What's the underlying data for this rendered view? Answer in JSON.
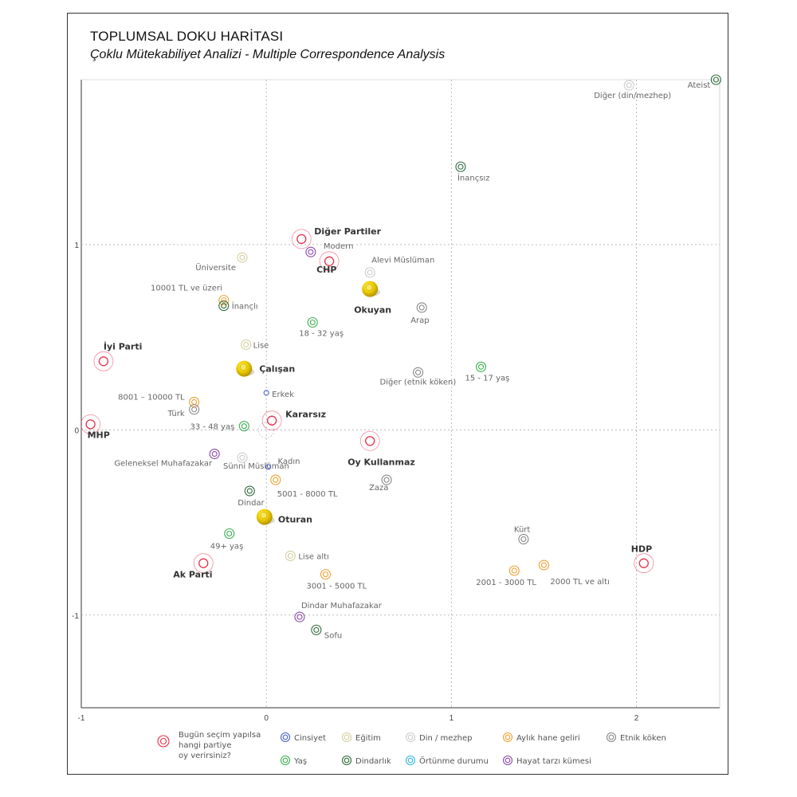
{
  "title": "TOPLUMSAL DOKU HARİTASI",
  "subtitle": "Çoklu Mütekabiliyet Analizi - Multiple Correspondence Analysis",
  "chart_data": {
    "type": "scatter",
    "xlim": [
      -1,
      2.45
    ],
    "ylim": [
      -1.5,
      1.89
    ],
    "x_ticks": [
      "-1",
      "0",
      "1",
      "2"
    ],
    "y_ticks": [
      "1",
      "0",
      "-1"
    ],
    "grid": "dashed at integer values",
    "colors": {
      "parti": "#e8304a",
      "cinsiyet": "#4a63c8",
      "egitim": "#d4cfa0",
      "din": "#cccccc",
      "gelir": "#f0a030",
      "etnik": "#888888",
      "yas": "#3aaf4e",
      "dindarlik": "#2d6a3a",
      "ortunme": "#31b7e0",
      "hayat": "#8a4aa8",
      "durum": "#e8c400"
    },
    "points": [
      {
        "label": "Ateist",
        "x": 2.43,
        "y": 1.89,
        "group": "dindarlik",
        "bold": false
      },
      {
        "label": "Diğer (din/mezhep)",
        "x": 1.96,
        "y": 1.86,
        "group": "din",
        "bold": false
      },
      {
        "label": "İnançsız",
        "x": 1.05,
        "y": 1.42,
        "group": "dindarlik",
        "bold": false
      },
      {
        "label": "Diğer Partiler",
        "x": 0.19,
        "y": 1.03,
        "group": "parti",
        "bold": true
      },
      {
        "label": "Modern",
        "x": 0.24,
        "y": 0.96,
        "group": "hayat",
        "bold": false
      },
      {
        "label": "CHP",
        "x": 0.34,
        "y": 0.91,
        "group": "parti",
        "bold": true
      },
      {
        "label": "Üniversite",
        "x": -0.13,
        "y": 0.93,
        "group": "egitim",
        "bold": false
      },
      {
        "label": "Alevi Müslüman",
        "x": 0.56,
        "y": 0.85,
        "group": "din",
        "bold": false
      },
      {
        "label": "Okuyan",
        "x": 0.56,
        "y": 0.76,
        "group": "durum",
        "bold": true
      },
      {
        "label": "10001 TL ve üzeri",
        "x": -0.23,
        "y": 0.7,
        "group": "gelir",
        "bold": false
      },
      {
        "label": "İnançlı",
        "x": -0.23,
        "y": 0.67,
        "group": "dindarlik",
        "bold": false
      },
      {
        "label": "Arap",
        "x": 0.84,
        "y": 0.66,
        "group": "etnik",
        "bold": false
      },
      {
        "label": "18 - 32 yaş",
        "x": 0.25,
        "y": 0.58,
        "group": "yas",
        "bold": false
      },
      {
        "label": "Lise",
        "x": -0.11,
        "y": 0.46,
        "group": "egitim",
        "bold": false
      },
      {
        "label": "İyi Parti",
        "x": -0.88,
        "y": 0.37,
        "group": "parti",
        "bold": true
      },
      {
        "label": "Çalışan",
        "x": -0.12,
        "y": 0.33,
        "group": "durum",
        "bold": true
      },
      {
        "label": "15 - 17 yaş",
        "x": 1.16,
        "y": 0.34,
        "group": "yas",
        "bold": false
      },
      {
        "label": "Diğer (etnik köken)",
        "x": 0.82,
        "y": 0.31,
        "group": "etnik",
        "bold": false
      },
      {
        "label": "Erkek",
        "x": 0.0,
        "y": 0.2,
        "group": "cinsiyet",
        "bold": false
      },
      {
        "label": "8001 – 10000 TL",
        "x": -0.39,
        "y": 0.15,
        "group": "gelir",
        "bold": false
      },
      {
        "label": "Türk",
        "x": -0.39,
        "y": 0.11,
        "group": "etnik",
        "bold": false
      },
      {
        "label": "Kararsız",
        "x": 0.03,
        "y": 0.05,
        "group": "parti",
        "bold": true
      },
      {
        "label": "33 - 48 yaş",
        "x": -0.12,
        "y": 0.02,
        "group": "yas",
        "bold": false
      },
      {
        "label": "MHP",
        "x": -0.95,
        "y": 0.03,
        "group": "parti",
        "bold": true
      },
      {
        "label": "Oy Kullanmaz",
        "x": 0.56,
        "y": -0.06,
        "group": "parti",
        "bold": true
      },
      {
        "label": "Sünni Müslüman",
        "x": -0.13,
        "y": -0.15,
        "group": "din",
        "bold": false
      },
      {
        "label": "Geleneksel Muhafazakar",
        "x": -0.28,
        "y": -0.13,
        "group": "hayat",
        "bold": false
      },
      {
        "label": "Kadın",
        "x": 0.01,
        "y": -0.2,
        "group": "cinsiyet",
        "bold": false
      },
      {
        "label": "5001 - 8000 TL",
        "x": 0.05,
        "y": -0.27,
        "group": "gelir",
        "bold": false
      },
      {
        "label": "Zaza",
        "x": 0.65,
        "y": -0.27,
        "group": "etnik",
        "bold": false
      },
      {
        "label": "Dindar",
        "x": -0.09,
        "y": -0.33,
        "group": "dindarlik",
        "bold": false
      },
      {
        "label": "Oturan",
        "x": -0.01,
        "y": -0.47,
        "group": "durum",
        "bold": true
      },
      {
        "label": "Kürt",
        "x": 1.39,
        "y": -0.59,
        "group": "etnik",
        "bold": false
      },
      {
        "label": "49+ yaş",
        "x": -0.2,
        "y": -0.56,
        "group": "yas",
        "bold": false
      },
      {
        "label": "Lise altı",
        "x": 0.13,
        "y": -0.68,
        "group": "egitim",
        "bold": false
      },
      {
        "label": "HDP",
        "x": 2.04,
        "y": -0.72,
        "group": "parti",
        "bold": true
      },
      {
        "label": "2000 TL ve altı",
        "x": 1.5,
        "y": -0.73,
        "group": "gelir",
        "bold": false
      },
      {
        "label": "2001 - 3000 TL",
        "x": 1.34,
        "y": -0.76,
        "group": "gelir",
        "bold": false
      },
      {
        "label": "Ak Parti",
        "x": -0.34,
        "y": -0.72,
        "group": "parti",
        "bold": true
      },
      {
        "label": "3001 - 5000 TL",
        "x": 0.32,
        "y": -0.78,
        "group": "gelir",
        "bold": false
      },
      {
        "label": "Dindar Muhafazakar",
        "x": 0.18,
        "y": -1.01,
        "group": "hayat",
        "bold": false
      },
      {
        "label": "Sofu",
        "x": 0.27,
        "y": -1.08,
        "group": "dindarlik",
        "bold": false
      }
    ],
    "legend": [
      {
        "label": "Bugün seçim yapılsa hangi partiye oy verirsiniz?",
        "group": "parti"
      },
      {
        "label": "Cinsiyet",
        "group": "cinsiyet"
      },
      {
        "label": "Eğitim",
        "group": "egitim"
      },
      {
        "label": "Din / mezhep",
        "group": "din"
      },
      {
        "label": "Aylık hane geliri",
        "group": "gelir"
      },
      {
        "label": "Etnik köken",
        "group": "etnik"
      },
      {
        "label": "Yaş",
        "group": "yas"
      },
      {
        "label": "Dindarlık",
        "group": "dindarlik"
      },
      {
        "label": "Örtünme durumu",
        "group": "ortunme"
      },
      {
        "label": "Hayat tarzı kümesi",
        "group": "hayat"
      }
    ]
  }
}
